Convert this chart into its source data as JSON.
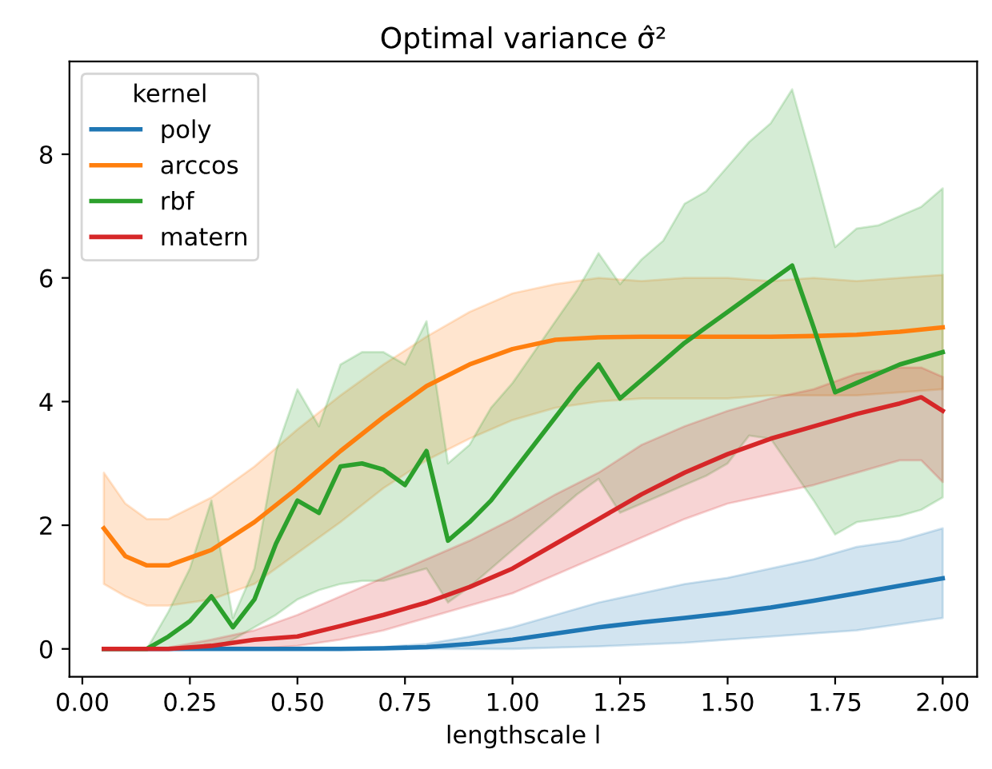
{
  "chart_data": {
    "type": "line",
    "title": "Optimal variance σ̂²",
    "xlabel": "lengthscale l",
    "legend_title": "kernel",
    "legend": "top left",
    "grid": false,
    "xlim": [
      -0.03,
      2.08
    ],
    "ylim": [
      -0.45,
      9.5
    ],
    "xticks": [
      {
        "value": 0,
        "label": "0.00"
      },
      {
        "value": 0.25,
        "label": "0.25"
      },
      {
        "value": 0.5,
        "label": "0.50"
      },
      {
        "value": 0.75,
        "label": "0.75"
      },
      {
        "value": 1,
        "label": "1.00"
      },
      {
        "value": 1.25,
        "label": "1.25"
      },
      {
        "value": 1.5,
        "label": "1.50"
      },
      {
        "value": 1.75,
        "label": "1.75"
      },
      {
        "value": 2,
        "label": "2.00"
      }
    ],
    "yticks": [
      0,
      2,
      4,
      6,
      8
    ],
    "series": [
      {
        "name": "poly",
        "color": "#1f77b4",
        "x": [
          0.05,
          0.1,
          0.2,
          0.3,
          0.4,
          0.5,
          0.6,
          0.7,
          0.8,
          0.9,
          1.0,
          1.1,
          1.2,
          1.3,
          1.4,
          1.5,
          1.6,
          1.7,
          1.8,
          1.9,
          2.0
        ],
        "values": [
          0,
          0,
          0,
          0,
          0,
          0,
          0,
          0.01,
          0.03,
          0.08,
          0.15,
          0.25,
          0.35,
          0.43,
          0.5,
          0.58,
          0.67,
          0.78,
          0.9,
          1.02,
          1.14
        ],
        "upper": [
          0,
          0,
          0,
          0,
          0,
          0,
          0.01,
          0.03,
          0.08,
          0.2,
          0.35,
          0.55,
          0.75,
          0.9,
          1.05,
          1.15,
          1.3,
          1.45,
          1.65,
          1.75,
          1.95
        ],
        "lower": [
          0,
          0,
          0,
          0,
          0,
          0,
          0,
          0,
          0,
          0,
          0,
          0.02,
          0.04,
          0.07,
          0.1,
          0.15,
          0.2,
          0.25,
          0.3,
          0.4,
          0.5
        ]
      },
      {
        "name": "arccos",
        "color": "#ff7f0e",
        "x": [
          0.05,
          0.1,
          0.15,
          0.2,
          0.3,
          0.4,
          0.5,
          0.6,
          0.7,
          0.8,
          0.9,
          1.0,
          1.1,
          1.2,
          1.3,
          1.4,
          1.5,
          1.6,
          1.7,
          1.8,
          1.9,
          2.0
        ],
        "values": [
          1.95,
          1.5,
          1.35,
          1.35,
          1.6,
          2.05,
          2.6,
          3.2,
          3.75,
          4.25,
          4.6,
          4.85,
          5.0,
          5.04,
          5.05,
          5.05,
          5.05,
          5.05,
          5.06,
          5.08,
          5.13,
          5.2
        ],
        "upper": [
          2.85,
          2.35,
          2.1,
          2.1,
          2.45,
          2.95,
          3.55,
          4.1,
          4.6,
          5.05,
          5.45,
          5.75,
          5.9,
          6.0,
          5.95,
          6.0,
          6.0,
          5.95,
          6.0,
          5.95,
          6.0,
          6.05
        ],
        "lower": [
          1.05,
          0.85,
          0.7,
          0.7,
          0.8,
          1.05,
          1.55,
          2.05,
          2.6,
          3.05,
          3.4,
          3.7,
          3.9,
          4.0,
          4.05,
          4.05,
          4.05,
          4.1,
          4.1,
          4.1,
          4.15,
          4.2
        ]
      },
      {
        "name": "rbf",
        "color": "#2ca02c",
        "x": [
          0.05,
          0.1,
          0.15,
          0.2,
          0.25,
          0.3,
          0.35,
          0.4,
          0.45,
          0.5,
          0.55,
          0.6,
          0.65,
          0.7,
          0.75,
          0.8,
          0.85,
          0.9,
          0.95,
          1.0,
          1.05,
          1.1,
          1.15,
          1.2,
          1.25,
          1.3,
          1.35,
          1.4,
          1.45,
          1.5,
          1.55,
          1.6,
          1.65,
          1.7,
          1.75,
          1.8,
          1.85,
          1.9,
          1.95,
          2.0
        ],
        "values": [
          0,
          0,
          0,
          0.2,
          0.45,
          0.85,
          0.35,
          0.8,
          1.7,
          2.4,
          2.2,
          2.95,
          3.0,
          2.9,
          2.65,
          3.2,
          1.75,
          2.05,
          2.4,
          2.85,
          3.3,
          3.75,
          4.2,
          4.6,
          4.05,
          4.35,
          4.65,
          4.95,
          5.2,
          5.45,
          5.7,
          5.95,
          6.2,
          5.2,
          4.15,
          4.3,
          4.45,
          4.6,
          4.7,
          4.8
        ],
        "upper": [
          0,
          0,
          0,
          0.6,
          1.3,
          2.4,
          0.5,
          1.3,
          3.2,
          4.2,
          3.6,
          4.6,
          4.8,
          4.8,
          4.6,
          5.3,
          3.0,
          3.3,
          3.9,
          4.3,
          4.8,
          5.3,
          5.8,
          6.4,
          5.9,
          6.3,
          6.6,
          7.2,
          7.4,
          7.8,
          8.2,
          8.5,
          9.05,
          7.8,
          6.5,
          6.8,
          6.85,
          7.0,
          7.15,
          7.45
        ],
        "lower": [
          0,
          0,
          0,
          0,
          0,
          0,
          0.15,
          0.35,
          0.55,
          0.8,
          0.95,
          1.05,
          1.1,
          1.1,
          1.2,
          1.3,
          0.75,
          1.0,
          1.3,
          1.6,
          1.9,
          2.2,
          2.5,
          2.75,
          2.2,
          2.35,
          2.5,
          2.65,
          2.8,
          3.0,
          3.45,
          3.4,
          2.9,
          2.4,
          1.85,
          2.05,
          2.1,
          2.15,
          2.25,
          2.45
        ]
      },
      {
        "name": "matern",
        "color": "#d62728",
        "x": [
          0.05,
          0.1,
          0.2,
          0.3,
          0.4,
          0.5,
          0.6,
          0.7,
          0.8,
          0.9,
          1.0,
          1.1,
          1.2,
          1.3,
          1.4,
          1.5,
          1.6,
          1.7,
          1.8,
          1.9,
          1.95,
          2.0
        ],
        "values": [
          0,
          0,
          0,
          0.05,
          0.15,
          0.2,
          0.37,
          0.55,
          0.75,
          1.0,
          1.3,
          1.7,
          2.1,
          2.5,
          2.85,
          3.15,
          3.4,
          3.6,
          3.8,
          3.97,
          4.07,
          3.85
        ],
        "upper": [
          0,
          0,
          0.02,
          0.15,
          0.3,
          0.55,
          0.85,
          1.15,
          1.45,
          1.75,
          2.1,
          2.5,
          2.85,
          3.3,
          3.6,
          3.85,
          4.05,
          4.2,
          4.45,
          4.55,
          4.55,
          4.4
        ],
        "lower": [
          0,
          0,
          0,
          0,
          0,
          0.05,
          0.15,
          0.3,
          0.5,
          0.7,
          0.9,
          1.2,
          1.5,
          1.8,
          2.1,
          2.35,
          2.5,
          2.65,
          2.85,
          3.05,
          3.05,
          2.7
        ]
      }
    ]
  }
}
